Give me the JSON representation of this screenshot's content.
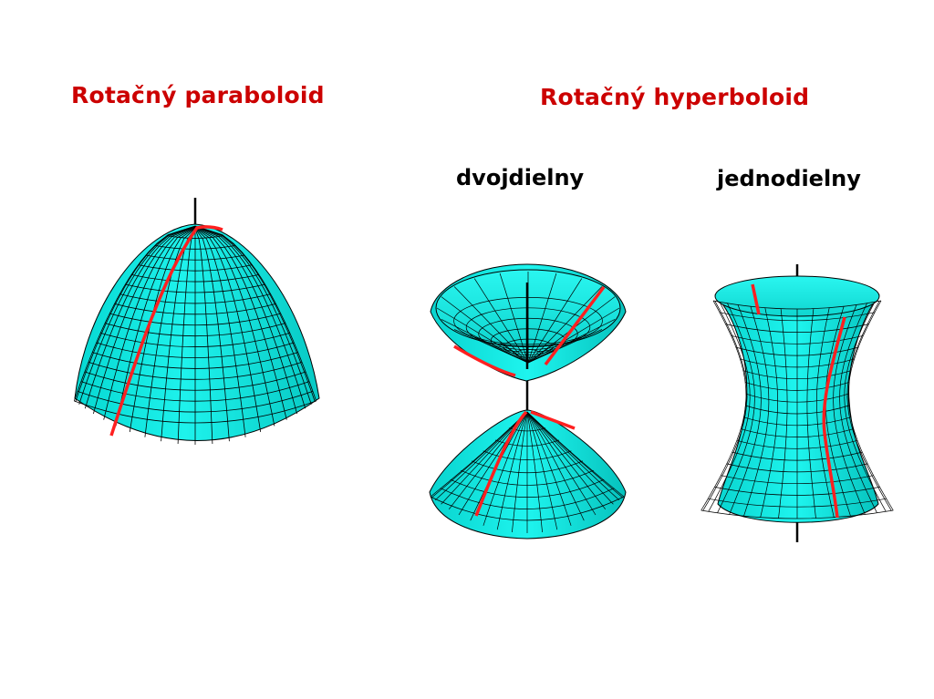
{
  "titles": {
    "paraboloid": "Rotačný paraboloid",
    "hyperboloid": "Rotačný hyperboloid",
    "two_sheet": "dvojdielny",
    "one_sheet": "jednodielny"
  },
  "colors": {
    "title": "#cc0000",
    "surface": "#00e5e0",
    "surface_shade": "#00b3b0",
    "mesh": "#000000",
    "generator_line": "#ff2020",
    "axis": "#000000"
  },
  "figures": [
    {
      "name": "paraboloid-figure"
    },
    {
      "name": "two-sheet-hyperboloid-figure"
    },
    {
      "name": "one-sheet-hyperboloid-figure"
    }
  ]
}
